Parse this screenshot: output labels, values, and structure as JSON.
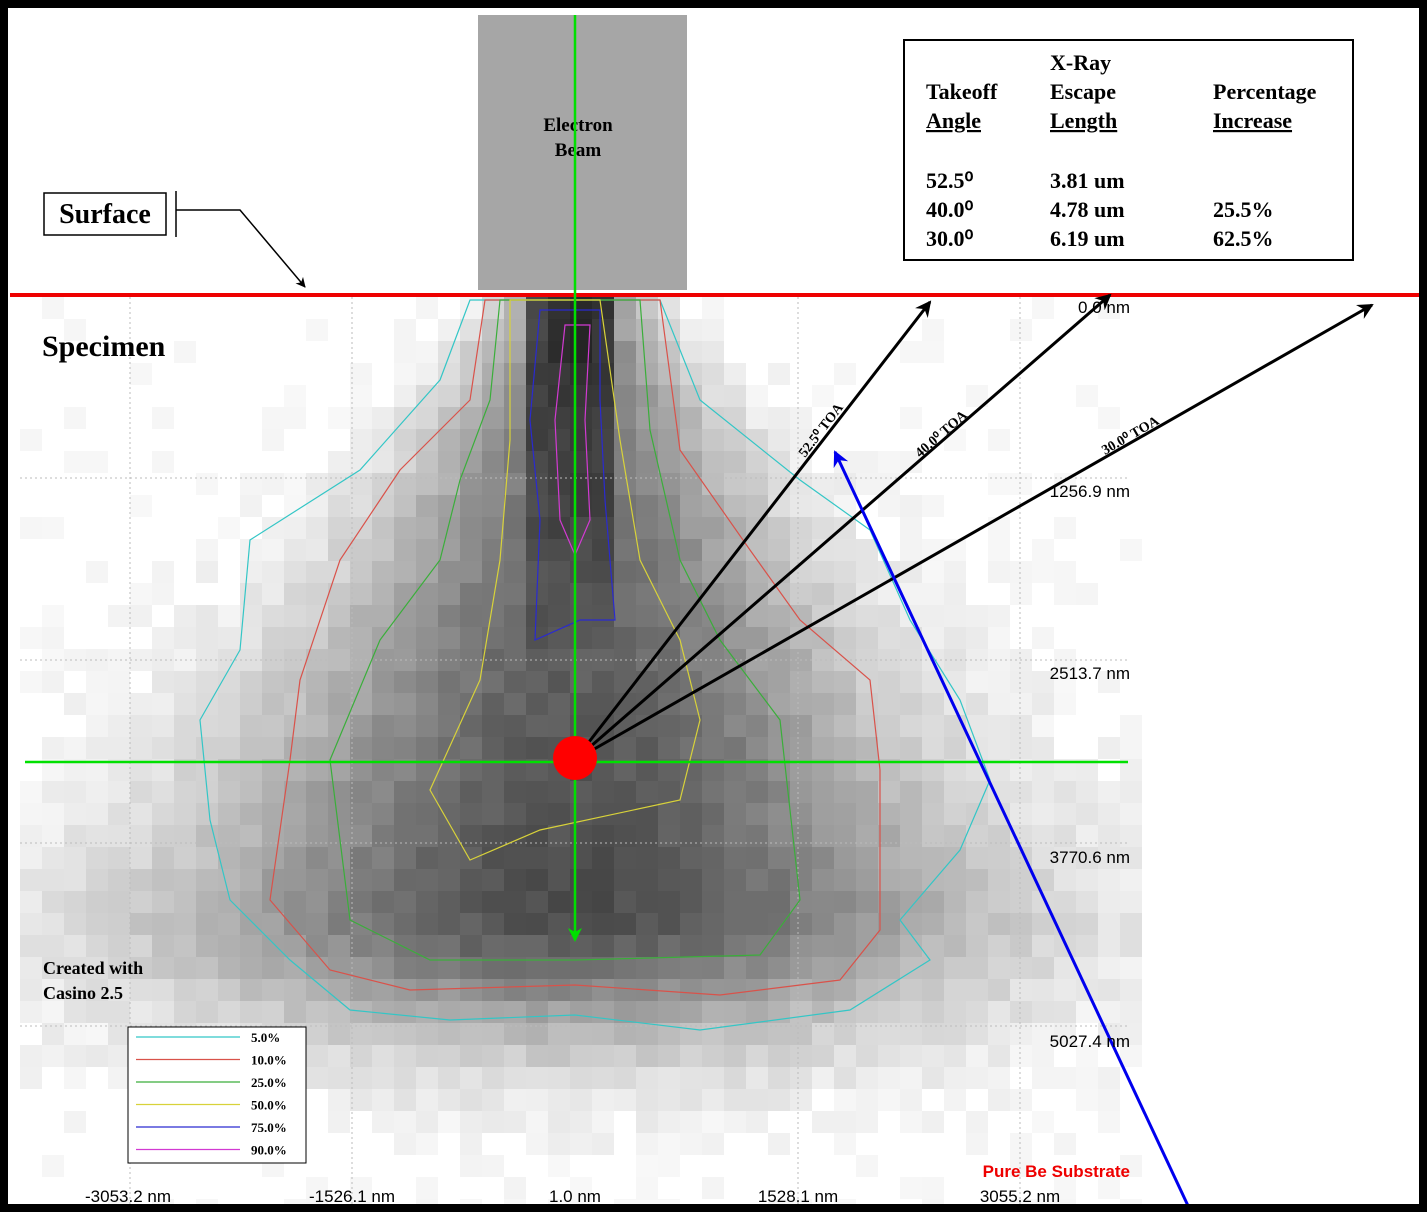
{
  "beam_label": [
    "Electron",
    "Beam"
  ],
  "surface_label": "Surface",
  "specimen_label": "Specimen",
  "table": {
    "header": [
      [
        "Takeoff",
        "Angle"
      ],
      [
        "X-Ray",
        "Escape",
        "Length"
      ],
      [
        "Percentage",
        "Increase"
      ]
    ],
    "rows": [
      [
        "52.5⁰",
        "3.81 um"
      ],
      [
        "40.0⁰",
        "4.78 um",
        "25.5%"
      ],
      [
        "30.0⁰",
        "6.19 um",
        "62.5%"
      ]
    ]
  },
  "arrow_labels": [
    "52.5⁰ TOA",
    "40.0⁰ TOA",
    "30.0⁰ TOA"
  ],
  "depth_labels": [
    "0.0 nm",
    "1256.9 nm",
    "2513.7 nm",
    "3770.6 nm",
    "5027.4 nm"
  ],
  "width_labels": [
    "-3053.2 nm",
    "-1526.1 nm",
    "1.0 nm",
    "1528.1 nm",
    "3055.2 nm"
  ],
  "credit": [
    "Created with",
    "Casino 2.5"
  ],
  "substrate_label": "Pure Be Substrate",
  "legend": [
    {
      "label": "5.0%",
      "color": "#33c6c6"
    },
    {
      "label": "10.0%",
      "color": "#d9524a"
    },
    {
      "label": "25.0%",
      "color": "#3aae3a"
    },
    {
      "label": "50.0%",
      "color": "#d8d23a"
    },
    {
      "label": "75.0%",
      "color": "#2a2ad0"
    },
    {
      "label": "90.0%",
      "color": "#d23ad2"
    }
  ]
}
